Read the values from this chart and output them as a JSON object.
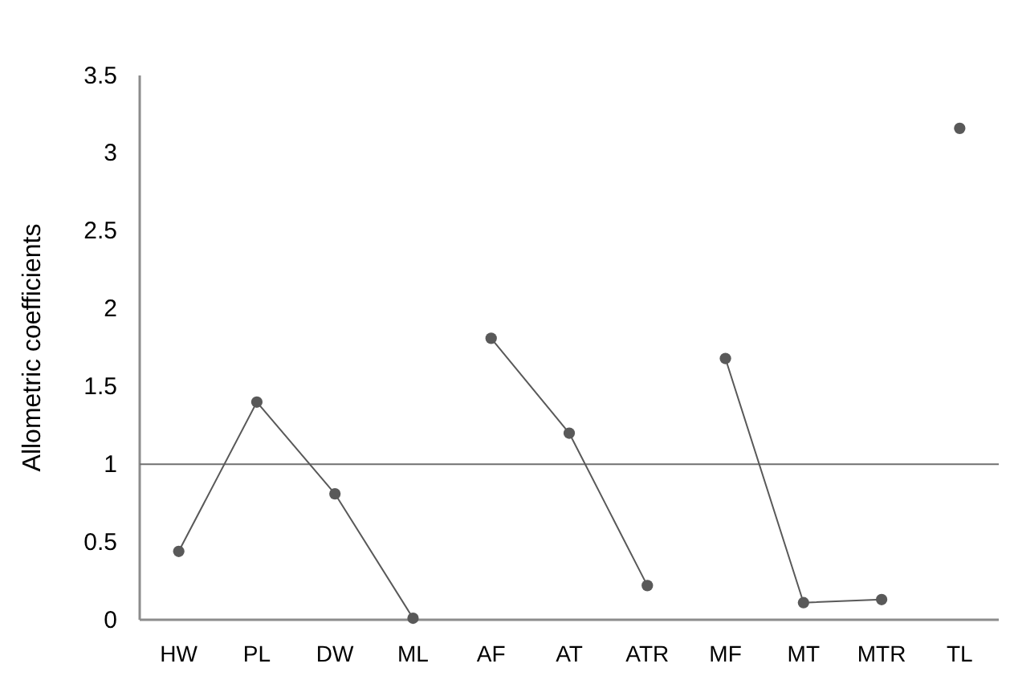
{
  "chart_data": {
    "type": "line",
    "ylabel": "Allometric coefficients",
    "categories": [
      "HW",
      "PL",
      "DW",
      "ML",
      "AF",
      "AT",
      "ATR",
      "MF",
      "MT",
      "MTR",
      "TL"
    ],
    "series": [
      {
        "color": "#595959",
        "values": [
          0.44,
          1.4,
          0.81,
          0.01,
          null,
          null,
          null,
          null,
          null,
          null,
          null
        ]
      },
      {
        "color": "#595959",
        "values": [
          null,
          null,
          null,
          null,
          1.81,
          1.2,
          0.22,
          null,
          null,
          null,
          null
        ]
      },
      {
        "color": "#595959",
        "values": [
          null,
          null,
          null,
          null,
          null,
          null,
          null,
          1.68,
          0.11,
          0.13,
          null
        ]
      },
      {
        "color": "#595959",
        "values": [
          null,
          null,
          null,
          null,
          null,
          null,
          null,
          null,
          null,
          null,
          3.16
        ]
      }
    ],
    "ylim": [
      0,
      3.5
    ],
    "yticks": [
      0,
      0.5,
      1,
      1.5,
      2,
      2.5,
      3,
      3.5
    ],
    "ref_lines": [
      {
        "axis": "y",
        "value": 1,
        "label": null,
        "color": "#6f6f6f",
        "line_style": "solid"
      }
    ],
    "marker": "circle",
    "line_style": "solid",
    "grid": false
  }
}
